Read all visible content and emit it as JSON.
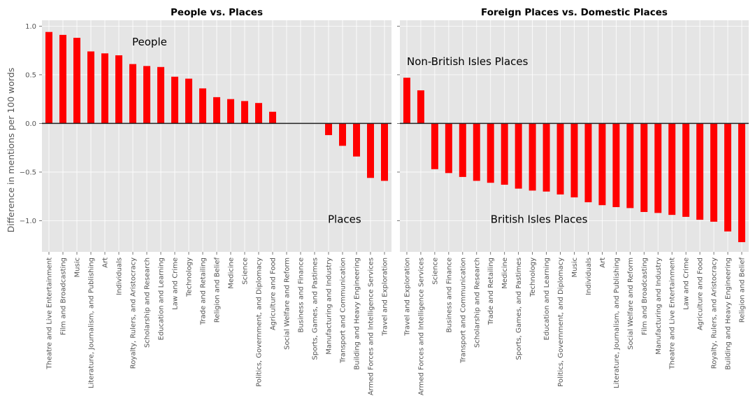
{
  "chart_data": [
    {
      "type": "bar",
      "title": "People vs. Places",
      "xlabel": "",
      "ylabel": "Difference in mentions per 100 words",
      "ylim": [
        -1.32,
        1.06
      ],
      "yticks": [
        "1.0",
        "0.5",
        "0.0",
        "−0.5",
        "−1.0"
      ],
      "ytick_values": [
        1.0,
        0.5,
        0.0,
        -0.5,
        -1.0
      ],
      "grid": true,
      "bar_color": "#ff0000",
      "categories": [
        "Theatre and Live Entertainment",
        "Film and Broadcasting",
        "Music",
        "Literature, Journalism, and Publishing",
        "Art",
        "Individuals",
        "Royalty, Rulers, and Aristocracy",
        "Scholarship and Research",
        "Education and Learning",
        "Law and Crime",
        "Technology",
        "Trade and Retailing",
        "Religion and Belief",
        "Medicine",
        "Science",
        "Politics, Government, and Diplomacy",
        "Agriculture and Food",
        "Social Welfare and Reform",
        "Business and Finance",
        "Sports, Games, and Pastimes",
        "Manufacturing and Industry",
        "Transport and Communication",
        "Building and Heavy Engineering",
        "Armed Forces and Intelligence Services",
        "Travel and Exploration"
      ],
      "values": [
        0.94,
        0.91,
        0.88,
        0.74,
        0.72,
        0.7,
        0.61,
        0.59,
        0.58,
        0.48,
        0.46,
        0.36,
        0.27,
        0.25,
        0.23,
        0.21,
        0.12,
        0.0,
        0.0,
        0.0,
        -0.12,
        -0.23,
        -0.34,
        -0.56,
        -0.59
      ],
      "annotations": [
        {
          "text": "People",
          "x_index": 6.0,
          "y": 0.8
        },
        {
          "text": "Places",
          "x_index": 20.0,
          "y": -1.02
        }
      ]
    },
    {
      "type": "bar",
      "title": "Foreign Places vs. Domestic Places",
      "xlabel": "",
      "ylabel": "",
      "ylim": [
        -1.32,
        1.06
      ],
      "ytick_values": [
        1.0,
        0.5,
        0.0,
        -0.5,
        -1.0
      ],
      "shared_y": true,
      "grid": true,
      "bar_color": "#ff0000",
      "categories": [
        "Travel and Exploration",
        "Armed Forces and Intelligence Services",
        "Science",
        "Business and Finance",
        "Transport and Communication",
        "Scholarship and Research",
        "Trade and Retailing",
        "Medicine",
        "Sports, Games, and Pastimes",
        "Technology",
        "Education and Learning",
        "Politics, Government, and Diplomacy",
        "Music",
        "Individuals",
        "Art",
        "Literature, Journalism, and Publishing",
        "Social Welfare and Reform",
        "Film and Broadcasting",
        "Manufacturing and Industry",
        "Theatre and Live Entertainment",
        "Law and Crime",
        "Agriculture and Food",
        "Royalty, Rulers, and Aristocracy",
        "Building and Heavy Engineering",
        "Religion and Belief"
      ],
      "values": [
        0.47,
        0.34,
        -0.47,
        -0.51,
        -0.55,
        -0.59,
        -0.61,
        -0.63,
        -0.67,
        -0.69,
        -0.7,
        -0.73,
        -0.76,
        -0.81,
        -0.84,
        -0.86,
        -0.87,
        -0.91,
        -0.92,
        -0.94,
        -0.96,
        -0.99,
        -1.01,
        -1.11,
        -1.22
      ],
      "annotations": [
        {
          "text": "Non-British Isles Places",
          "x_index": 0.2,
          "y": 0.6
        },
        {
          "text": "British Isles Places",
          "x_index": 6.2,
          "y": -1.02
        }
      ]
    }
  ]
}
